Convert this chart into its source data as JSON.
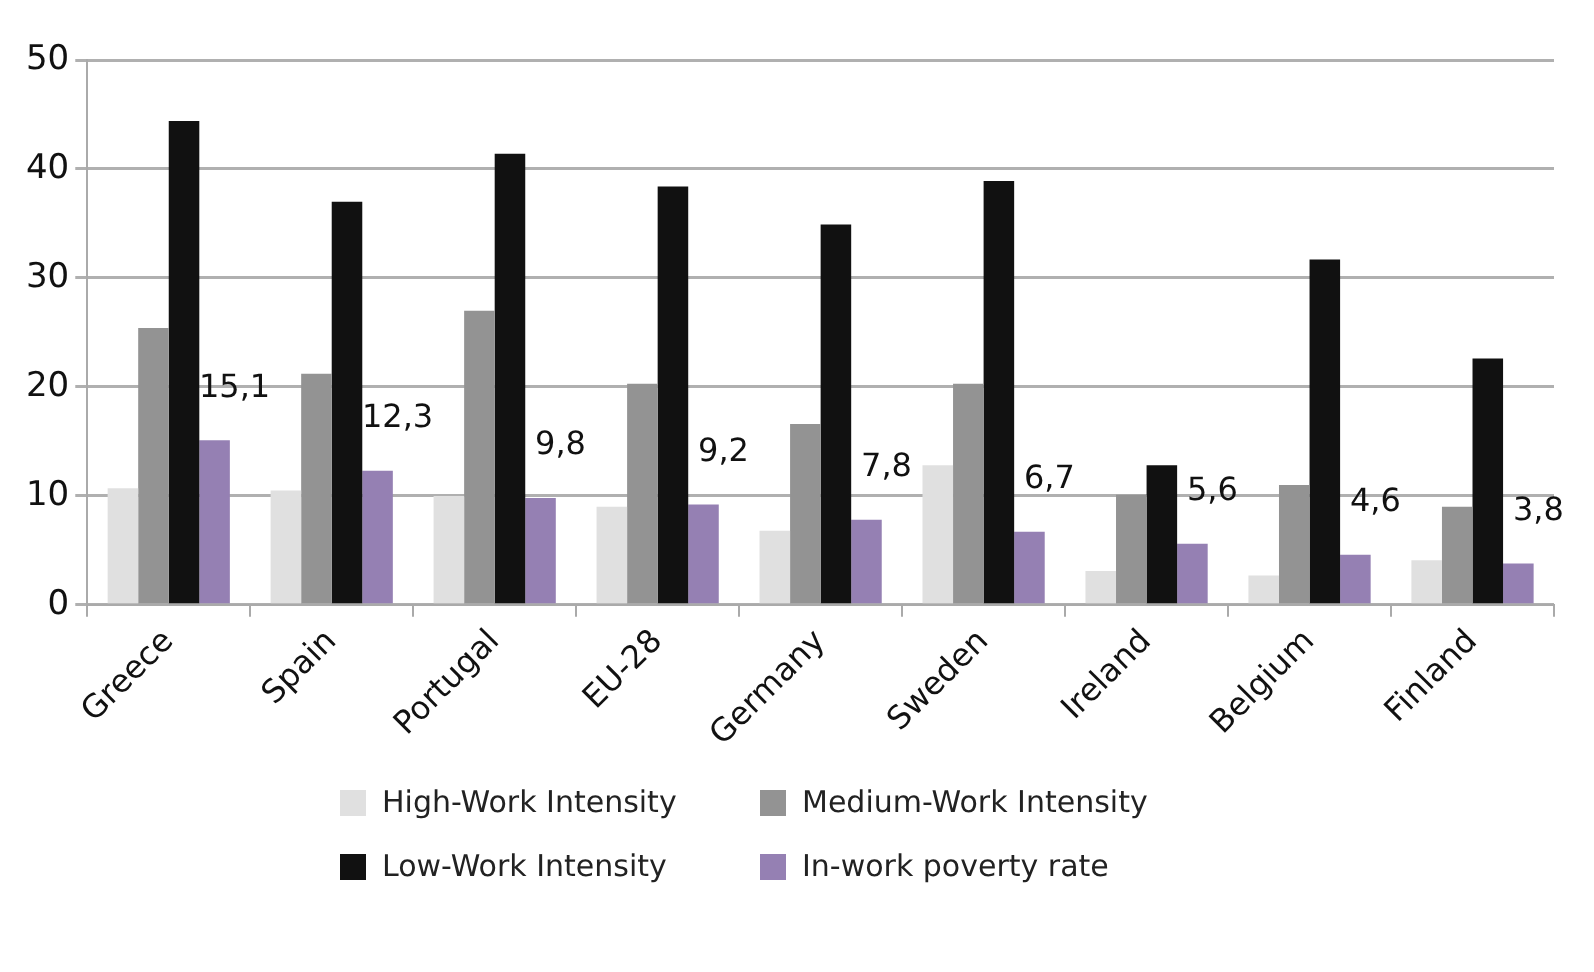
{
  "chart_data": {
    "type": "bar",
    "categories": [
      "Greece",
      "Spain",
      "Portugal",
      "EU-28",
      "Germany",
      "Sweden",
      "Ireland",
      "Belgium",
      "Finland"
    ],
    "series": [
      {
        "name": "High-Work Intensity",
        "color": "#e0e0e0",
        "values": [
          10.7,
          10.5,
          10.0,
          9.0,
          6.8,
          12.8,
          3.1,
          2.7,
          4.1
        ]
      },
      {
        "name": "Medium-Work Intensity",
        "color": "#939393",
        "values": [
          25.4,
          21.2,
          27.0,
          20.3,
          16.6,
          20.3,
          10.1,
          11.0,
          9.0
        ]
      },
      {
        "name": "Low-Work Intensity",
        "color": "#111111",
        "values": [
          44.4,
          37.0,
          41.4,
          38.4,
          34.9,
          38.9,
          12.8,
          31.7,
          22.6
        ]
      },
      {
        "name": "In-work poverty rate",
        "color": "#9580b3",
        "values": [
          15.1,
          12.3,
          9.8,
          9.2,
          7.8,
          6.7,
          5.6,
          4.6,
          3.8
        ],
        "value_labels": [
          "15,1",
          "12,3",
          "9,8",
          "9,2",
          "7,8",
          "6,7",
          "5,6",
          "4,6",
          "3,8"
        ]
      }
    ],
    "ylim": [
      0,
      50
    ],
    "yticks": [
      0,
      10,
      20,
      30,
      40,
      50
    ],
    "grid": "y",
    "legend": "bottom"
  }
}
